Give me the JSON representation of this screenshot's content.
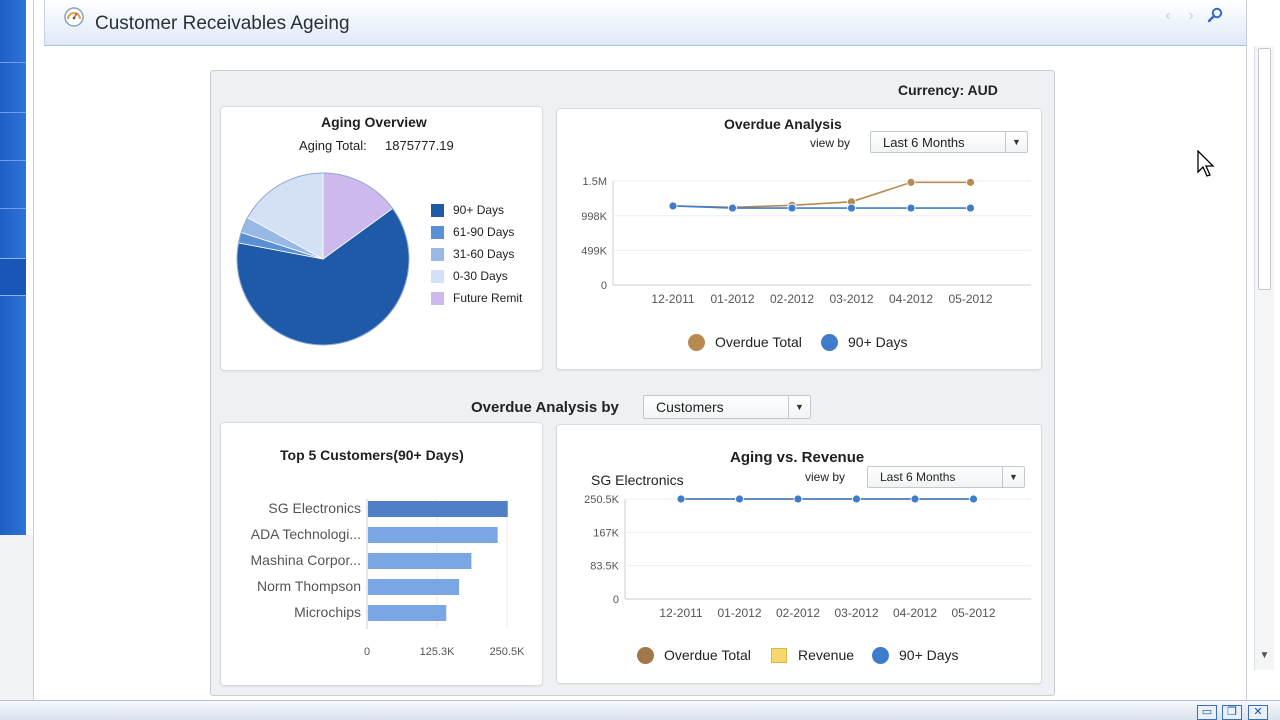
{
  "page": {
    "title": "Customer Receivables Ageing",
    "currency_label": "Currency: AUD"
  },
  "header": {
    "icons": [
      "gauge-icon",
      "chevron-left-icon",
      "chevron-right-icon",
      "wrench-icon"
    ]
  },
  "aging_overview": {
    "title": "Aging Overview",
    "total_label": "Aging Total:",
    "total_value": "1875777.19",
    "legend": [
      {
        "label": "90+ Days",
        "color": "#1f5aa8"
      },
      {
        "label": "61-90 Days",
        "color": "#5b8fd4"
      },
      {
        "label": "31-60 Days",
        "color": "#98b9e6"
      },
      {
        "label": "0-30 Days",
        "color": "#d3e0f5"
      },
      {
        "label": "Future Remit",
        "color": "#cdb9ee"
      }
    ]
  },
  "overdue_analysis": {
    "title": "Overdue Analysis",
    "view_by_label": "view by",
    "view_by_value": "Last 6 Months",
    "legend": [
      {
        "label": "Overdue Total",
        "color": "#b88a52"
      },
      {
        "label": "90+ Days",
        "color": "#3f7dcc"
      }
    ]
  },
  "overdue_by": {
    "label": "Overdue Analysis by",
    "value": "Customers"
  },
  "top5": {
    "title": "Top 5 Customers(90+ Days)"
  },
  "aging_vs_revenue": {
    "title": "Aging vs. Revenue",
    "customer": "SG Electronics",
    "view_by_label": "view by",
    "view_by_value": "Last 6 Months",
    "legend": [
      {
        "label": "Overdue Total",
        "color": "#a0784a"
      },
      {
        "label": "Revenue",
        "color": "#f5d76e"
      },
      {
        "label": "90+ Days",
        "color": "#3f7dcc"
      }
    ]
  },
  "chart_data": [
    {
      "id": "aging-pie",
      "type": "pie",
      "title": "Aging Overview",
      "slices": [
        {
          "label": "90+ Days",
          "value": 63,
          "color": "#1f5aa8"
        },
        {
          "label": "61-90 Days",
          "value": 2,
          "color": "#5b8fd4"
        },
        {
          "label": "31-60 Days",
          "value": 3,
          "color": "#98b9e6"
        },
        {
          "label": "0-30 Days",
          "value": 17,
          "color": "#d3e0f5"
        },
        {
          "label": "Future Remit",
          "value": 15,
          "color": "#cdb9ee"
        }
      ]
    },
    {
      "id": "overdue-line",
      "type": "line",
      "title": "Overdue Analysis",
      "categories": [
        "12-2011",
        "01-2012",
        "02-2012",
        "03-2012",
        "04-2012",
        "05-2012"
      ],
      "y_ticks": [
        "0",
        "499K",
        "998K",
        "1.5M"
      ],
      "y_tick_values": [
        0,
        499000,
        998000,
        1500000
      ],
      "ylim": [
        0,
        1500000
      ],
      "series": [
        {
          "name": "Overdue Total",
          "color": "#b88a52",
          "values": [
            1140000,
            1120000,
            1150000,
            1200000,
            1480000,
            1480000
          ]
        },
        {
          "name": "90+ Days",
          "color": "#3f7dcc",
          "values": [
            1140000,
            1110000,
            1110000,
            1110000,
            1110000,
            1110000
          ]
        }
      ]
    },
    {
      "id": "top5-bar",
      "type": "bar",
      "orientation": "horizontal",
      "title": "Top 5 Customers(90+ Days)",
      "categories": [
        "SG Electronics",
        "ADA Technologi...",
        "Mashina Corpor...",
        "Norm Thompson",
        "Microchips"
      ],
      "values": [
        250000,
        232000,
        185000,
        163000,
        140000
      ],
      "x_ticks": [
        "0",
        "125.3K",
        "250.5K"
      ],
      "x_tick_values": [
        0,
        125300,
        250500
      ],
      "xlim": [
        0,
        250500
      ]
    },
    {
      "id": "aging-revenue-line",
      "type": "line",
      "title": "Aging vs. Revenue",
      "categories": [
        "12-2011",
        "01-2012",
        "02-2012",
        "03-2012",
        "04-2012",
        "05-2012"
      ],
      "y_ticks": [
        "0",
        "83.5K",
        "167K",
        "250.5K"
      ],
      "y_tick_values": [
        0,
        83500,
        167000,
        250500
      ],
      "ylim": [
        0,
        250500
      ],
      "series": [
        {
          "name": "Overdue Total",
          "color": "#a0784a",
          "values": [
            250500,
            250500,
            250500,
            250500,
            250500,
            250500
          ]
        },
        {
          "name": "90+ Days",
          "color": "#3f7dcc",
          "values": [
            250500,
            250500,
            250500,
            250500,
            250500,
            250500
          ]
        }
      ]
    }
  ]
}
